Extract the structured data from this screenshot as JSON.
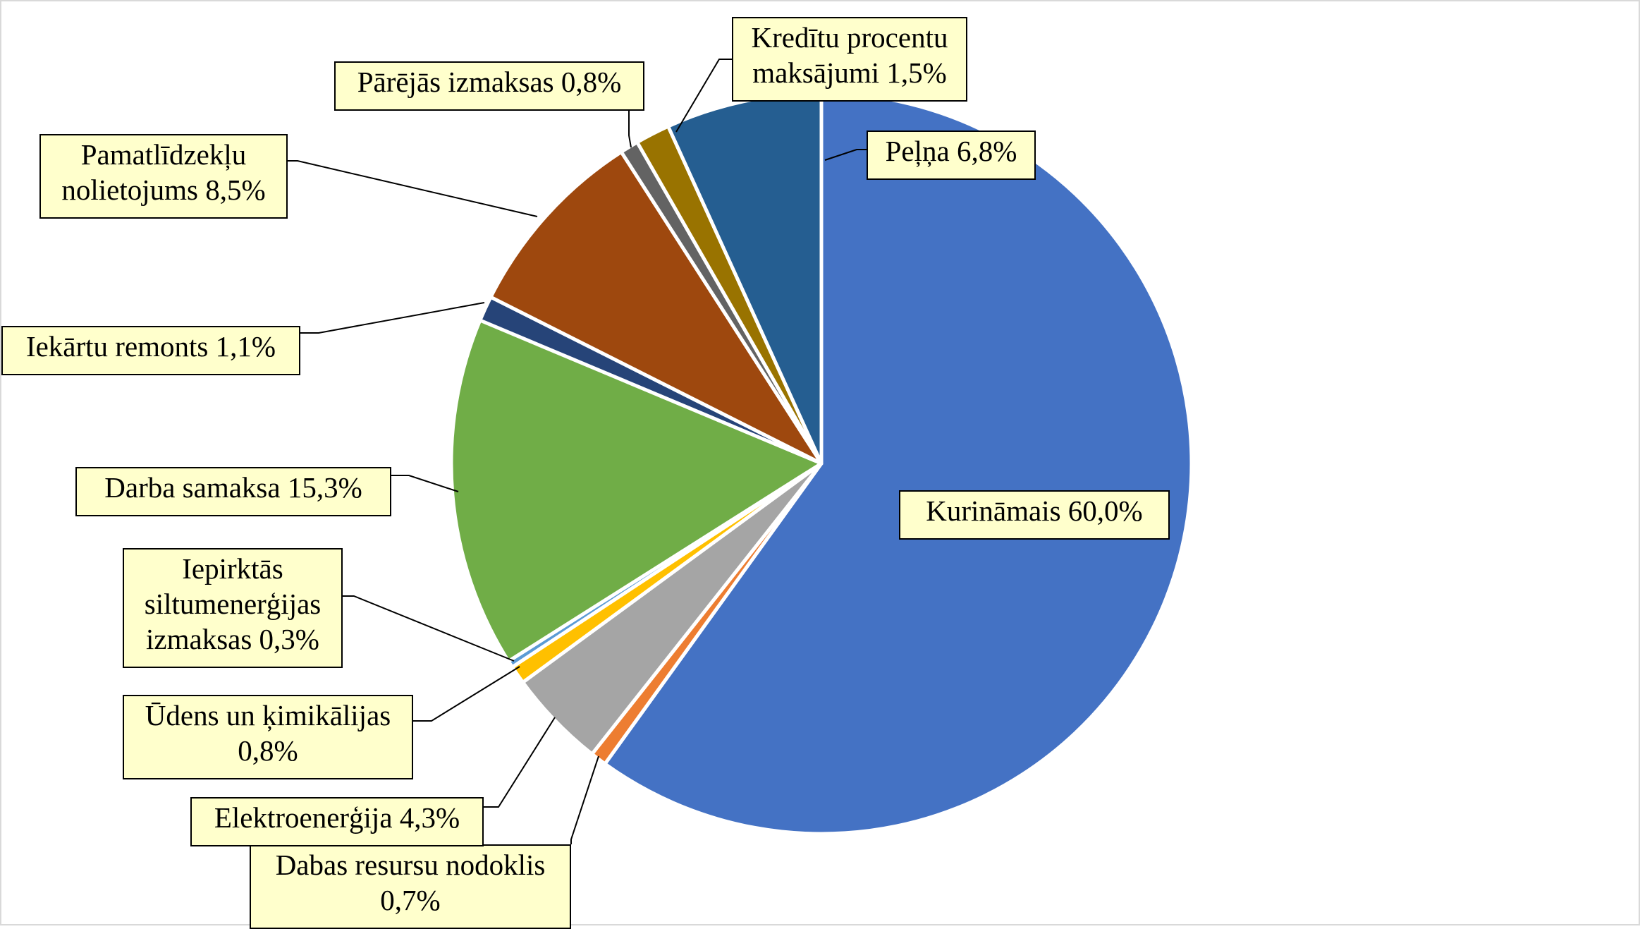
{
  "chart_data": {
    "type": "pie",
    "title": "",
    "start_angle_deg": 0,
    "direction": "clockwise",
    "slices": [
      {
        "label": "Kurināmais  60,0%",
        "value": 60.0,
        "color": "#4472c4"
      },
      {
        "label": "Dabas resursu nodoklis\n0,7%",
        "value": 0.7,
        "color": "#ed7d31"
      },
      {
        "label": "Elektroenerģija  4,3%",
        "value": 4.3,
        "color": "#a5a5a5"
      },
      {
        "label": "Ūdens  un  ķimikālijas\n0,8%",
        "value": 0.8,
        "color": "#ffc000"
      },
      {
        "label": "Iepirktās\nsiltumenerģijas\nizmaksas 0,3%",
        "value": 0.3,
        "color": "#5b9bd5"
      },
      {
        "label": "Darba samaksa  15,3%",
        "value": 15.3,
        "color": "#70ad47"
      },
      {
        "label": "Iekārtu remonts  1,1%",
        "value": 1.1,
        "color": "#264478"
      },
      {
        "label": "Pamatlīdzekļu\nnolietojums  8,5%",
        "value": 8.5,
        "color": "#9e480e"
      },
      {
        "label": "Pārējās izmaksas 0,8%",
        "value": 0.8,
        "color": "#636363"
      },
      {
        "label": "Kredītu procentu\nmaksājumi  1,5%",
        "value": 1.5,
        "color": "#997300"
      },
      {
        "label": "Peļņa 6,8%",
        "value": 6.8,
        "color": "#255e91"
      }
    ],
    "label_background": "#ffffcc"
  }
}
